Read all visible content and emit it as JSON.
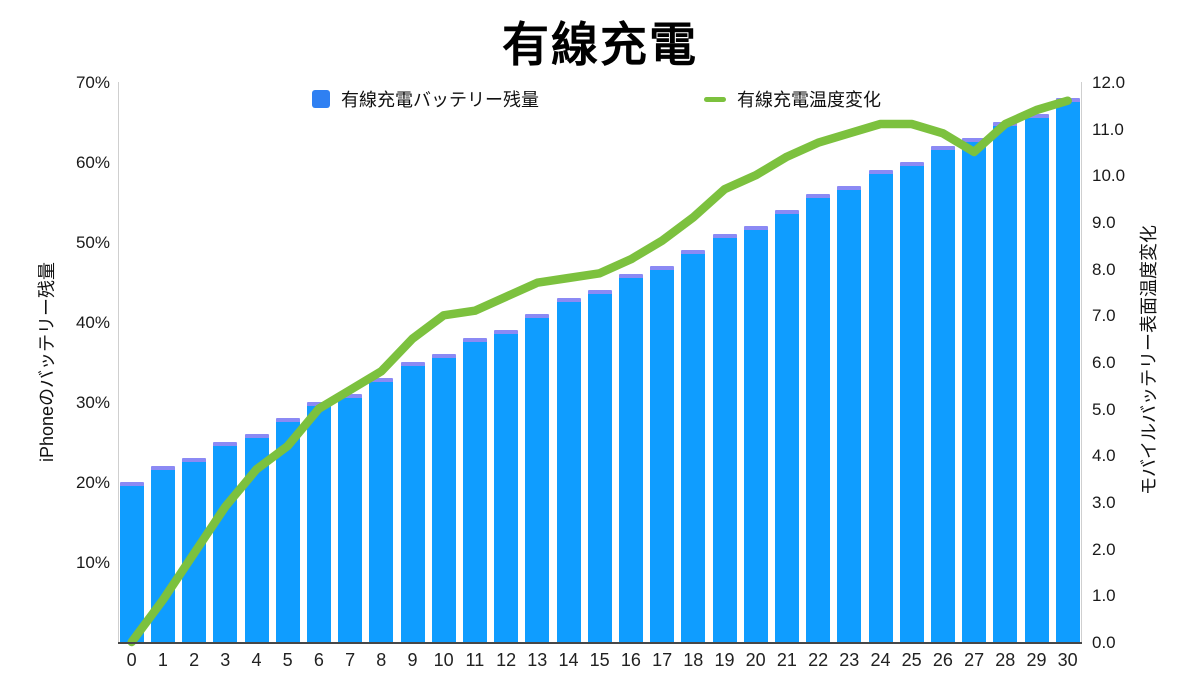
{
  "title": "有線充電",
  "legend": {
    "battery": {
      "label": "有線充電バッテリー残量"
    },
    "temperature": {
      "label": "有線充電温度変化"
    }
  },
  "left_axis": {
    "title": "iPhoneのバッテリー残量",
    "tick_labels": [
      "70%",
      "60%",
      "50%",
      "40%",
      "30%",
      "20%",
      "10%"
    ],
    "tick_values": [
      70,
      60,
      50,
      40,
      30,
      20,
      10
    ],
    "min": 0,
    "max": 70
  },
  "right_axis": {
    "title": "モバイルバッテリー表面温度変化",
    "tick_labels": [
      "12.0",
      "11.0",
      "10.0",
      "9.0",
      "8.0",
      "7.0",
      "6.0",
      "5.0",
      "4.0",
      "3.0",
      "2.0",
      "1.0",
      "0.0"
    ],
    "tick_values": [
      12,
      11,
      10,
      9,
      8,
      7,
      6,
      5,
      4,
      3,
      2,
      1,
      0
    ],
    "min": 0,
    "max": 12
  },
  "x_axis": {
    "labels": [
      "0",
      "1",
      "2",
      "3",
      "4",
      "5",
      "6",
      "7",
      "8",
      "9",
      "10",
      "11",
      "12",
      "13",
      "14",
      "15",
      "16",
      "17",
      "18",
      "19",
      "20",
      "21",
      "22",
      "23",
      "24",
      "25",
      "26",
      "27",
      "28",
      "29",
      "30"
    ]
  },
  "chart_data": {
    "type": "bar+line",
    "title": "有線充電",
    "x": [
      0,
      1,
      2,
      3,
      4,
      5,
      6,
      7,
      8,
      9,
      10,
      11,
      12,
      13,
      14,
      15,
      16,
      17,
      18,
      19,
      20,
      21,
      22,
      23,
      24,
      25,
      26,
      27,
      28,
      29,
      30
    ],
    "series": [
      {
        "name": "有線充電バッテリー残量",
        "type": "bar",
        "axis": "left",
        "unit": "%",
        "values": [
          20,
          22,
          23,
          25,
          26,
          28,
          30,
          31,
          33,
          35,
          36,
          38,
          39,
          41,
          43,
          44,
          46,
          47,
          49,
          51,
          52,
          54,
          56,
          57,
          59,
          60,
          62,
          63,
          65,
          66,
          68
        ]
      },
      {
        "name": "有線充電温度変化",
        "type": "line",
        "axis": "right",
        "values": [
          0.0,
          0.9,
          1.9,
          2.9,
          3.7,
          4.2,
          5.0,
          5.4,
          5.8,
          6.5,
          7.0,
          7.1,
          7.4,
          7.7,
          7.8,
          7.9,
          8.2,
          8.6,
          9.1,
          9.7,
          10.0,
          10.4,
          10.7,
          10.9,
          11.1,
          11.1,
          10.9,
          10.5,
          11.1,
          11.4,
          11.6
        ]
      }
    ],
    "left_ylabel": "iPhoneのバッテリー残量",
    "right_ylabel": "モバイルバッテリー表面温度変化",
    "left_ylim": [
      0,
      70
    ],
    "right_ylim": [
      0,
      12
    ],
    "grid": false,
    "legend_position": "top"
  },
  "colors": {
    "bar_fill": "#0f9dff",
    "bar_cap": "rgba(110,108,242,0.8)",
    "line": "#7cc13e",
    "legend_square": "#2f80f2",
    "baseline": "#474747",
    "axis_edge": "#cfcfcf",
    "text": "#1b1b1b"
  }
}
